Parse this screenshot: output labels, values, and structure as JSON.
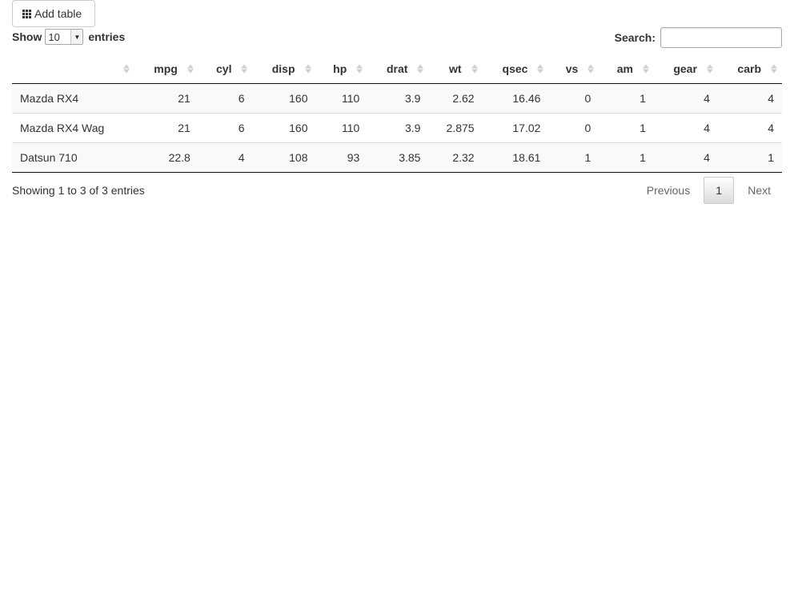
{
  "toolbar": {
    "add_table_label": "Add table",
    "add_table_icon": "table-grid-icon"
  },
  "length_menu": {
    "show_label": "Show",
    "selected": "10",
    "entries_label": "entries"
  },
  "search": {
    "label": "Search:",
    "value": "",
    "placeholder": ""
  },
  "table": {
    "columns": [
      "",
      "mpg",
      "cyl",
      "disp",
      "hp",
      "drat",
      "wt",
      "qsec",
      "vs",
      "am",
      "gear",
      "carb"
    ],
    "rows": [
      [
        "Mazda RX4",
        "21",
        "6",
        "160",
        "110",
        "3.9",
        "2.62",
        "16.46",
        "0",
        "1",
        "4",
        "4"
      ],
      [
        "Mazda RX4 Wag",
        "21",
        "6",
        "160",
        "110",
        "3.9",
        "2.875",
        "17.02",
        "0",
        "1",
        "4",
        "4"
      ],
      [
        "Datsun 710",
        "22.8",
        "4",
        "108",
        "93",
        "3.85",
        "2.32",
        "18.61",
        "1",
        "1",
        "4",
        "1"
      ]
    ]
  },
  "info": "Showing 1 to 3 of 3 entries",
  "pagination": {
    "previous": "Previous",
    "current_page": "1",
    "next": "Next"
  }
}
